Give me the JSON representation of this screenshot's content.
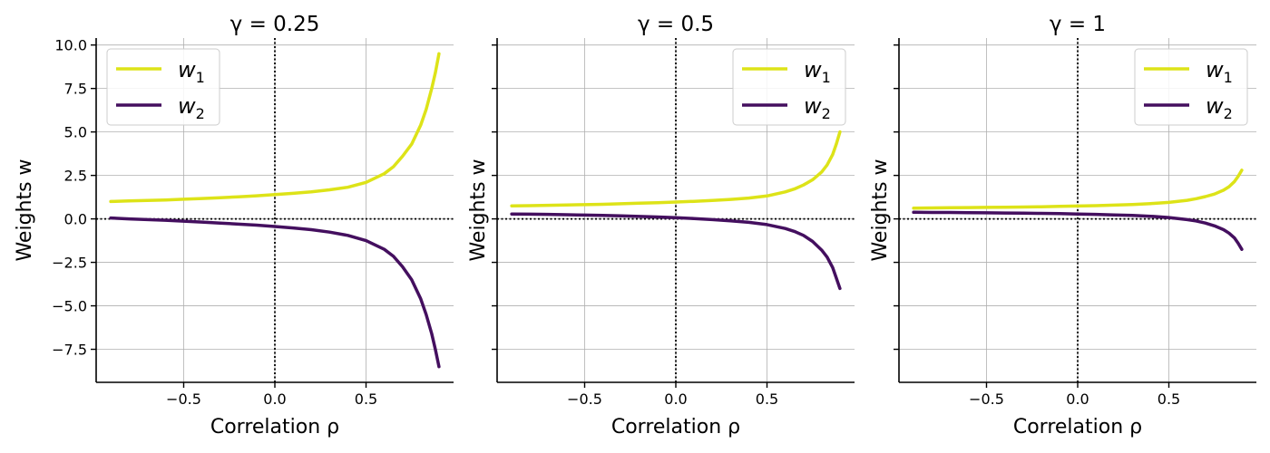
{
  "chart_data": [
    {
      "type": "line",
      "title": "γ = 0.25",
      "xlabel": "Correlation ρ",
      "ylabel": "Weights w",
      "xlim": [
        -0.98,
        0.98
      ],
      "ylim": [
        -9.4,
        10.4
      ],
      "xticks": [
        -0.5,
        0.0,
        0.5
      ],
      "xtick_labels": [
        "−0.5",
        "0.0",
        "0.5"
      ],
      "yticks": [
        -7.5,
        -5.0,
        -2.5,
        0.0,
        2.5,
        5.0,
        7.5,
        10.0
      ],
      "ytick_labels": [
        "−7.5",
        "−5.0",
        "−2.5",
        "0.0",
        "2.5",
        "5.0",
        "7.5",
        "10.0"
      ],
      "grid": true,
      "legend_position": "top-left",
      "reference_lines": {
        "x": 0,
        "y": 0
      },
      "series": [
        {
          "name": "w1",
          "color": "#dde318",
          "x": [
            -0.9,
            -0.8,
            -0.7,
            -0.6,
            -0.5,
            -0.4,
            -0.3,
            -0.2,
            -0.1,
            0.0,
            0.1,
            0.2,
            0.3,
            0.4,
            0.5,
            0.6,
            0.65,
            0.7,
            0.75,
            0.8,
            0.83,
            0.86,
            0.88,
            0.9
          ],
          "values": [
            1.0,
            1.03,
            1.06,
            1.09,
            1.13,
            1.17,
            1.22,
            1.27,
            1.33,
            1.4,
            1.47,
            1.56,
            1.67,
            1.82,
            2.1,
            2.6,
            3.0,
            3.6,
            4.3,
            5.4,
            6.3,
            7.5,
            8.4,
            9.5
          ]
        },
        {
          "name": "w2",
          "color": "#440f5f",
          "x": [
            -0.9,
            -0.8,
            -0.7,
            -0.6,
            -0.5,
            -0.4,
            -0.3,
            -0.2,
            -0.1,
            0.0,
            0.1,
            0.2,
            0.3,
            0.4,
            0.5,
            0.6,
            0.65,
            0.7,
            0.75,
            0.8,
            0.83,
            0.86,
            0.88,
            0.9
          ],
          "values": [
            0.05,
            0.0,
            -0.04,
            -0.08,
            -0.13,
            -0.18,
            -0.24,
            -0.3,
            -0.36,
            -0.44,
            -0.52,
            -0.62,
            -0.76,
            -0.95,
            -1.25,
            -1.75,
            -2.15,
            -2.75,
            -3.5,
            -4.6,
            -5.5,
            -6.6,
            -7.5,
            -8.5
          ]
        }
      ],
      "legend": {
        "items": [
          {
            "label": "w",
            "sub": "1"
          },
          {
            "label": "w",
            "sub": "2"
          }
        ]
      }
    },
    {
      "type": "line",
      "title": "γ = 0.5",
      "xlabel": "Correlation ρ",
      "ylabel": "Weights w",
      "xlim": [
        -0.98,
        0.98
      ],
      "ylim": [
        -9.4,
        10.4
      ],
      "xticks": [
        -0.5,
        0.0,
        0.5
      ],
      "xtick_labels": [
        "−0.5",
        "0.0",
        "0.5"
      ],
      "yticks": [
        -7.5,
        -5.0,
        -2.5,
        0.0,
        2.5,
        5.0,
        7.5,
        10.0
      ],
      "ytick_labels": [],
      "grid": true,
      "legend_position": "top-right",
      "reference_lines": {
        "x": 0,
        "y": 0
      },
      "series": [
        {
          "name": "w1",
          "color": "#dde318",
          "x": [
            -0.9,
            -0.8,
            -0.7,
            -0.6,
            -0.5,
            -0.4,
            -0.3,
            -0.2,
            -0.1,
            0.0,
            0.1,
            0.2,
            0.3,
            0.4,
            0.5,
            0.6,
            0.65,
            0.7,
            0.75,
            0.8,
            0.83,
            0.86,
            0.88,
            0.9
          ],
          "values": [
            0.75,
            0.76,
            0.78,
            0.8,
            0.82,
            0.84,
            0.87,
            0.9,
            0.93,
            0.97,
            1.01,
            1.06,
            1.12,
            1.2,
            1.32,
            1.55,
            1.72,
            1.95,
            2.25,
            2.7,
            3.1,
            3.7,
            4.3,
            5.0
          ]
        },
        {
          "name": "w2",
          "color": "#440f5f",
          "x": [
            -0.9,
            -0.8,
            -0.7,
            -0.6,
            -0.5,
            -0.4,
            -0.3,
            -0.2,
            -0.1,
            0.0,
            0.1,
            0.2,
            0.3,
            0.4,
            0.5,
            0.6,
            0.65,
            0.7,
            0.75,
            0.8,
            0.83,
            0.86,
            0.88,
            0.9
          ],
          "values": [
            0.28,
            0.27,
            0.26,
            0.24,
            0.22,
            0.2,
            0.17,
            0.14,
            0.11,
            0.07,
            0.02,
            -0.04,
            -0.11,
            -0.2,
            -0.33,
            -0.55,
            -0.72,
            -0.95,
            -1.3,
            -1.8,
            -2.2,
            -2.8,
            -3.4,
            -4.0
          ]
        }
      ],
      "legend": {
        "items": [
          {
            "label": "w",
            "sub": "1"
          },
          {
            "label": "w",
            "sub": "2"
          }
        ]
      }
    },
    {
      "type": "line",
      "title": "γ = 1",
      "xlabel": "Correlation ρ",
      "ylabel": "Weights w",
      "xlim": [
        -0.98,
        0.98
      ],
      "ylim": [
        -9.4,
        10.4
      ],
      "xticks": [
        -0.5,
        0.0,
        0.5
      ],
      "xtick_labels": [
        "−0.5",
        "0.0",
        "0.5"
      ],
      "yticks": [
        -7.5,
        -5.0,
        -2.5,
        0.0,
        2.5,
        5.0,
        7.5,
        10.0
      ],
      "ytick_labels": [],
      "grid": true,
      "legend_position": "top-right",
      "reference_lines": {
        "x": 0,
        "y": 0
      },
      "series": [
        {
          "name": "w1",
          "color": "#dde318",
          "x": [
            -0.9,
            -0.8,
            -0.7,
            -0.6,
            -0.5,
            -0.4,
            -0.3,
            -0.2,
            -0.1,
            0.0,
            0.1,
            0.2,
            0.3,
            0.4,
            0.5,
            0.6,
            0.65,
            0.7,
            0.75,
            0.8,
            0.83,
            0.86,
            0.88,
            0.9
          ],
          "values": [
            0.62,
            0.63,
            0.64,
            0.65,
            0.66,
            0.67,
            0.68,
            0.7,
            0.72,
            0.74,
            0.76,
            0.79,
            0.83,
            0.88,
            0.95,
            1.07,
            1.16,
            1.28,
            1.43,
            1.65,
            1.85,
            2.15,
            2.45,
            2.8
          ]
        },
        {
          "name": "w2",
          "color": "#440f5f",
          "x": [
            -0.9,
            -0.8,
            -0.7,
            -0.6,
            -0.5,
            -0.4,
            -0.3,
            -0.2,
            -0.1,
            0.0,
            0.1,
            0.2,
            0.3,
            0.4,
            0.5,
            0.6,
            0.65,
            0.7,
            0.75,
            0.8,
            0.83,
            0.86,
            0.88,
            0.9
          ],
          "values": [
            0.38,
            0.37,
            0.37,
            0.36,
            0.35,
            0.34,
            0.33,
            0.32,
            0.3,
            0.28,
            0.26,
            0.23,
            0.2,
            0.15,
            0.08,
            -0.04,
            -0.12,
            -0.24,
            -0.4,
            -0.62,
            -0.82,
            -1.1,
            -1.4,
            -1.75
          ]
        }
      ],
      "legend": {
        "items": [
          {
            "label": "w",
            "sub": "1"
          },
          {
            "label": "w",
            "sub": "2"
          }
        ]
      }
    }
  ]
}
